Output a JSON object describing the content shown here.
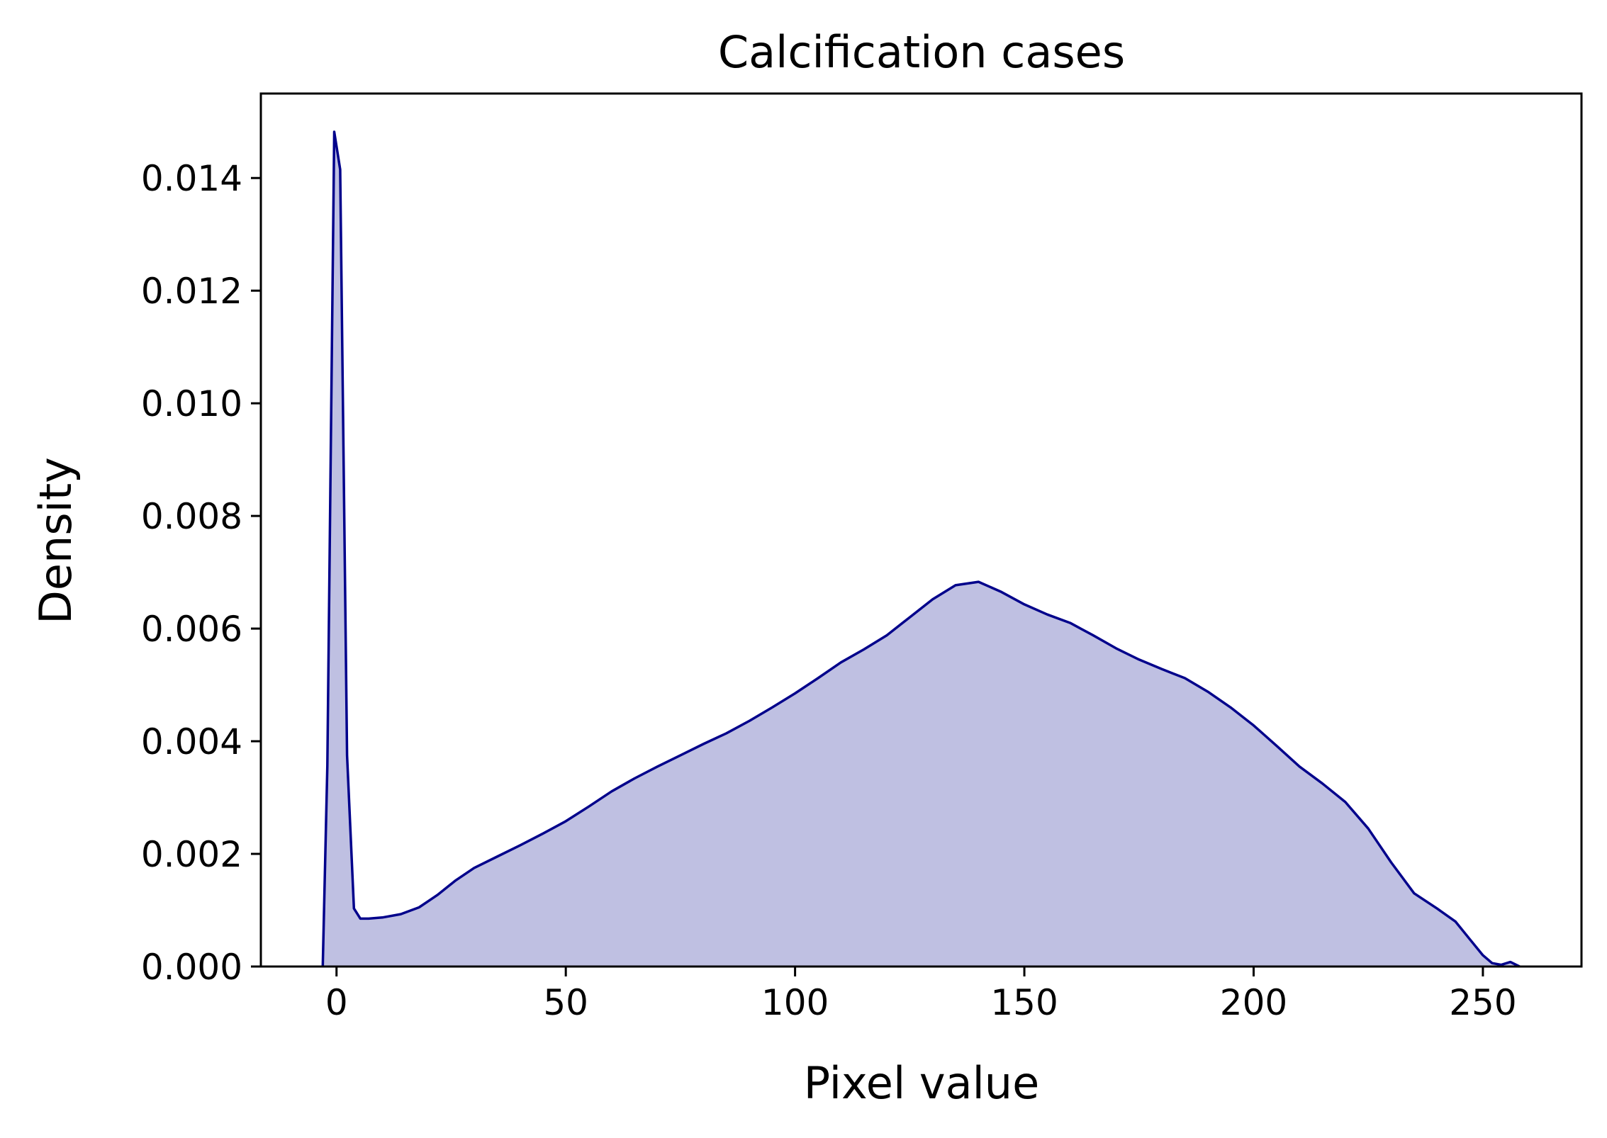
{
  "chart_data": {
    "type": "area",
    "title": "Calcification cases",
    "xlabel": "Pixel value",
    "ylabel": "Density",
    "xlim": [
      -16.5,
      271.5
    ],
    "ylim": [
      0,
      0.0155
    ],
    "xticks": [
      0,
      50,
      100,
      150,
      200,
      250
    ],
    "xtick_labels": [
      "0",
      "50",
      "100",
      "150",
      "200",
      "250"
    ],
    "yticks": [
      0,
      0.002,
      0.004,
      0.006,
      0.008,
      0.01,
      0.012,
      0.014
    ],
    "ytick_labels": [
      "0.000",
      "0.002",
      "0.004",
      "0.006",
      "0.008",
      "0.010",
      "0.012",
      "0.014"
    ],
    "grid": false,
    "legend": false,
    "colors": {
      "line": "#00008b",
      "fill": "#bfc0e2"
    },
    "series": [
      {
        "x": [
          -3,
          -2,
          -0.5,
          0.8,
          2.3,
          3.8,
          5.2,
          7,
          10,
          14,
          18,
          22,
          26,
          30,
          35,
          40,
          45,
          50,
          55,
          60,
          65,
          70,
          75,
          80,
          85,
          90,
          95,
          100,
          105,
          110,
          115,
          120,
          125,
          130,
          135,
          140,
          145,
          150,
          155,
          160,
          165,
          170,
          175,
          180,
          185,
          190,
          195,
          200,
          205,
          210,
          215,
          220,
          225,
          230,
          235,
          240,
          244,
          247,
          250,
          252,
          254,
          256,
          258
        ],
        "y": [
          0,
          0.00357,
          0.01482,
          0.01415,
          0.00375,
          0.00103,
          0.00085,
          0.00085,
          0.00087,
          0.00093,
          0.00105,
          0.00127,
          0.00153,
          0.00175,
          0.00195,
          0.00215,
          0.00236,
          0.00258,
          0.00284,
          0.00311,
          0.00334,
          0.00355,
          0.00375,
          0.00395,
          0.00414,
          0.00436,
          0.0046,
          0.00485,
          0.00512,
          0.0054,
          0.00563,
          0.00588,
          0.0062,
          0.00652,
          0.00677,
          0.00683,
          0.00665,
          0.00643,
          0.00625,
          0.0061,
          0.00588,
          0.00565,
          0.00545,
          0.00528,
          0.00512,
          0.00488,
          0.0046,
          0.00428,
          0.00392,
          0.00355,
          0.00325,
          0.00292,
          0.00245,
          0.00185,
          0.0013,
          0.00103,
          0.0008,
          0.0005,
          0.0002,
          6e-05,
          3e-05,
          8e-05,
          0
        ]
      }
    ]
  }
}
